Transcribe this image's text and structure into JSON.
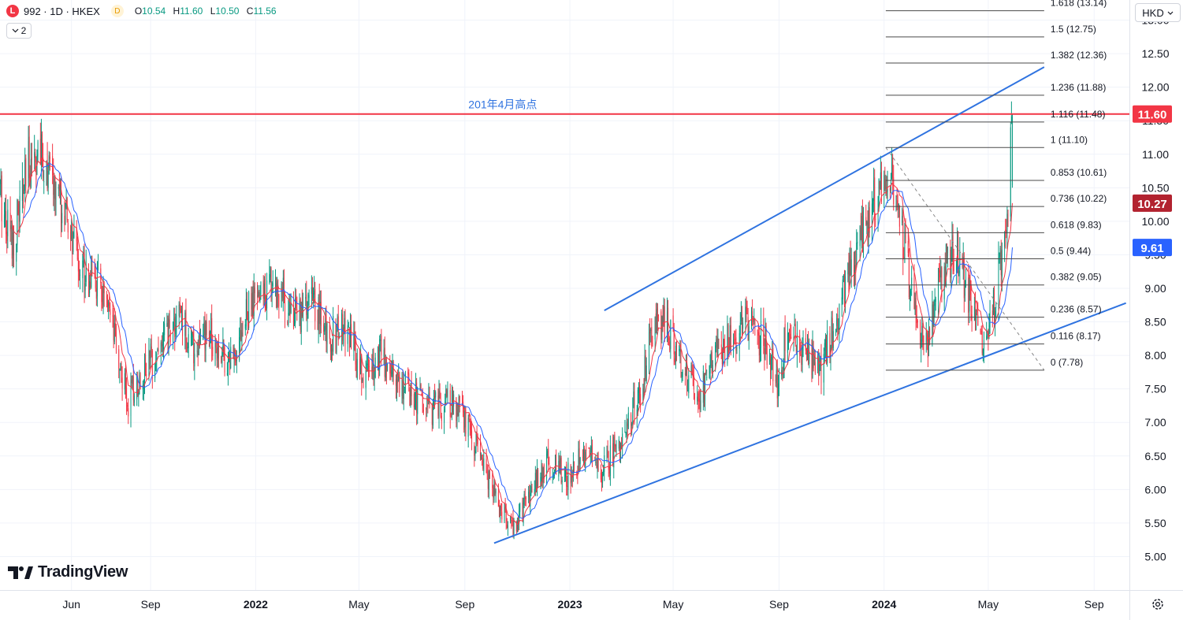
{
  "header": {
    "symbol_badge": "L",
    "title": "992 · 1D · HKEX",
    "d_badge": "D",
    "open_label": "O",
    "open": "10.54",
    "high_label": "H",
    "high": "11.60",
    "low_label": "L",
    "low": "10.50",
    "close_label": "C",
    "close": "11.56",
    "collapse_count": "2",
    "currency": "HKD"
  },
  "logo_text": "TradingView",
  "colors": {
    "up": "#089981",
    "down": "#f23645",
    "ma_fast": "#f23645",
    "ma_slow": "#2962ff",
    "trend": "#2f73e0",
    "resistance": "#f23645",
    "fib": "#4a4a4a"
  },
  "chart_data": {
    "type": "candlestick",
    "symbol": "992",
    "exchange": "HKEX",
    "interval": "1D",
    "currency": "HKD",
    "grid": true,
    "y_axis": {
      "position": "right",
      "ylim": [
        4.5,
        13.3
      ],
      "ticks": [
        "5.00",
        "5.50",
        "6.00",
        "6.50",
        "7.00",
        "7.50",
        "8.00",
        "8.50",
        "9.00",
        "9.50",
        "10.00",
        "10.50",
        "11.00",
        "11.50",
        "12.00",
        "12.50",
        "13.00"
      ]
    },
    "x_axis": {
      "labels": [
        {
          "text": "Jun",
          "date": "2021-06-01",
          "bold": false
        },
        {
          "text": "Sep",
          "date": "2021-09-01",
          "bold": false
        },
        {
          "text": "2022",
          "date": "2022-01-01",
          "bold": true
        },
        {
          "text": "May",
          "date": "2022-05-01",
          "bold": false
        },
        {
          "text": "Sep",
          "date": "2022-09-01",
          "bold": false
        },
        {
          "text": "2023",
          "date": "2023-01-01",
          "bold": true
        },
        {
          "text": "May",
          "date": "2023-05-01",
          "bold": false
        },
        {
          "text": "Sep",
          "date": "2023-09-01",
          "bold": false
        },
        {
          "text": "2024",
          "date": "2024-01-01",
          "bold": true
        },
        {
          "text": "May",
          "date": "2024-05-01",
          "bold": false
        },
        {
          "text": "Sep",
          "date": "2024-09-01",
          "bold": false
        }
      ],
      "range": [
        "2021-03-10",
        "2024-10-12"
      ]
    },
    "price_path": [
      [
        "2021-03-10",
        10.4
      ],
      [
        "2021-03-25",
        9.7
      ],
      [
        "2021-04-15",
        11.0
      ],
      [
        "2021-05-01",
        10.9
      ],
      [
        "2021-05-20",
        10.2
      ],
      [
        "2021-06-10",
        9.4
      ],
      [
        "2021-07-05",
        9.0
      ],
      [
        "2021-07-25",
        8.0
      ],
      [
        "2021-08-05",
        7.3
      ],
      [
        "2021-08-25",
        7.8
      ],
      [
        "2021-09-15",
        8.2
      ],
      [
        "2021-10-05",
        8.6
      ],
      [
        "2021-10-20",
        8.1
      ],
      [
        "2021-11-10",
        8.3
      ],
      [
        "2021-12-01",
        7.9
      ],
      [
        "2021-12-25",
        8.7
      ],
      [
        "2022-01-20",
        9.1
      ],
      [
        "2022-02-15",
        8.6
      ],
      [
        "2022-03-10",
        8.8
      ],
      [
        "2022-03-25",
        8.3
      ],
      [
        "2022-04-15",
        8.4
      ],
      [
        "2022-05-05",
        7.7
      ],
      [
        "2022-05-25",
        8.0
      ],
      [
        "2022-06-20",
        7.6
      ],
      [
        "2022-07-20",
        7.2
      ],
      [
        "2022-08-20",
        7.3
      ],
      [
        "2022-09-10",
        6.8
      ],
      [
        "2022-10-01",
        6.0
      ],
      [
        "2022-10-25",
        5.4
      ],
      [
        "2022-11-10",
        5.8
      ],
      [
        "2022-12-05",
        6.4
      ],
      [
        "2022-12-25",
        6.2
      ],
      [
        "2023-01-20",
        6.5
      ],
      [
        "2023-02-10",
        6.3
      ],
      [
        "2023-03-05",
        6.9
      ],
      [
        "2023-03-25",
        7.5
      ],
      [
        "2023-04-10",
        8.6
      ],
      [
        "2023-04-25",
        8.4
      ],
      [
        "2023-05-15",
        7.8
      ],
      [
        "2023-05-30",
        7.4
      ],
      [
        "2023-06-20",
        8.0
      ],
      [
        "2023-07-10",
        8.3
      ],
      [
        "2023-07-25",
        8.5
      ],
      [
        "2023-08-15",
        8.2
      ],
      [
        "2023-08-30",
        7.6
      ],
      [
        "2023-09-10",
        8.4
      ],
      [
        "2023-09-30",
        8.0
      ],
      [
        "2023-10-20",
        7.8
      ],
      [
        "2023-11-10",
        8.7
      ],
      [
        "2023-12-05",
        9.7
      ],
      [
        "2023-12-28",
        10.6
      ],
      [
        "2024-01-10",
        10.7
      ],
      [
        "2024-01-25",
        9.5
      ],
      [
        "2024-02-10",
        8.5
      ],
      [
        "2024-02-20",
        8.1
      ],
      [
        "2024-03-10",
        9.3
      ],
      [
        "2024-03-25",
        9.6
      ],
      [
        "2024-04-10",
        8.8
      ],
      [
        "2024-04-22",
        8.2
      ],
      [
        "2024-05-05",
        8.6
      ],
      [
        "2024-05-15",
        9.3
      ],
      [
        "2024-05-25",
        10.5
      ],
      [
        "2024-05-29",
        11.56
      ]
    ],
    "ma_fast_label_value": 10.27,
    "ma_slow_label_value": 9.61,
    "ma_fast_last": 10.27,
    "ma_slow_last": 9.61,
    "last_price": 11.6,
    "resistance": {
      "price": 11.6,
      "label": "201年4月高点",
      "label_date": "2022-10-15"
    },
    "channel_upper": [
      [
        "2023-02-10",
        8.67
      ],
      [
        "2024-07-05",
        12.3
      ]
    ],
    "channel_lower": [
      [
        "2022-10-05",
        5.2
      ],
      [
        "2024-10-08",
        8.78
      ]
    ],
    "fib_dashed": [
      [
        "2024-01-03",
        11.1
      ],
      [
        "2024-07-05",
        7.78
      ]
    ],
    "fib_retracement": {
      "start_date": "2024-01-03",
      "end_date": "2024-07-05",
      "levels": [
        {
          "ratio": "0",
          "price": "7.78"
        },
        {
          "ratio": "0.116",
          "price": "8.17"
        },
        {
          "ratio": "0.236",
          "price": "8.57"
        },
        {
          "ratio": "0.382",
          "price": "9.05"
        },
        {
          "ratio": "0.5",
          "price": "9.44"
        },
        {
          "ratio": "0.618",
          "price": "9.83"
        },
        {
          "ratio": "0.736",
          "price": "10.22"
        },
        {
          "ratio": "0.853",
          "price": "10.61"
        },
        {
          "ratio": "1",
          "price": "11.10"
        },
        {
          "ratio": "1.116",
          "price": "11.48"
        },
        {
          "ratio": "1.236",
          "price": "11.88"
        },
        {
          "ratio": "1.382",
          "price": "12.36"
        },
        {
          "ratio": "1.5",
          "price": "12.75"
        },
        {
          "ratio": "1.618",
          "price": "13.14"
        }
      ]
    },
    "price_labels": [
      {
        "text": "11.60",
        "price": 11.6,
        "color": "#f23645"
      },
      {
        "text": "10.27",
        "price": 10.27,
        "color": "#b2222f"
      },
      {
        "text": "9.61",
        "price": 9.61,
        "color": "#2962ff"
      }
    ]
  }
}
